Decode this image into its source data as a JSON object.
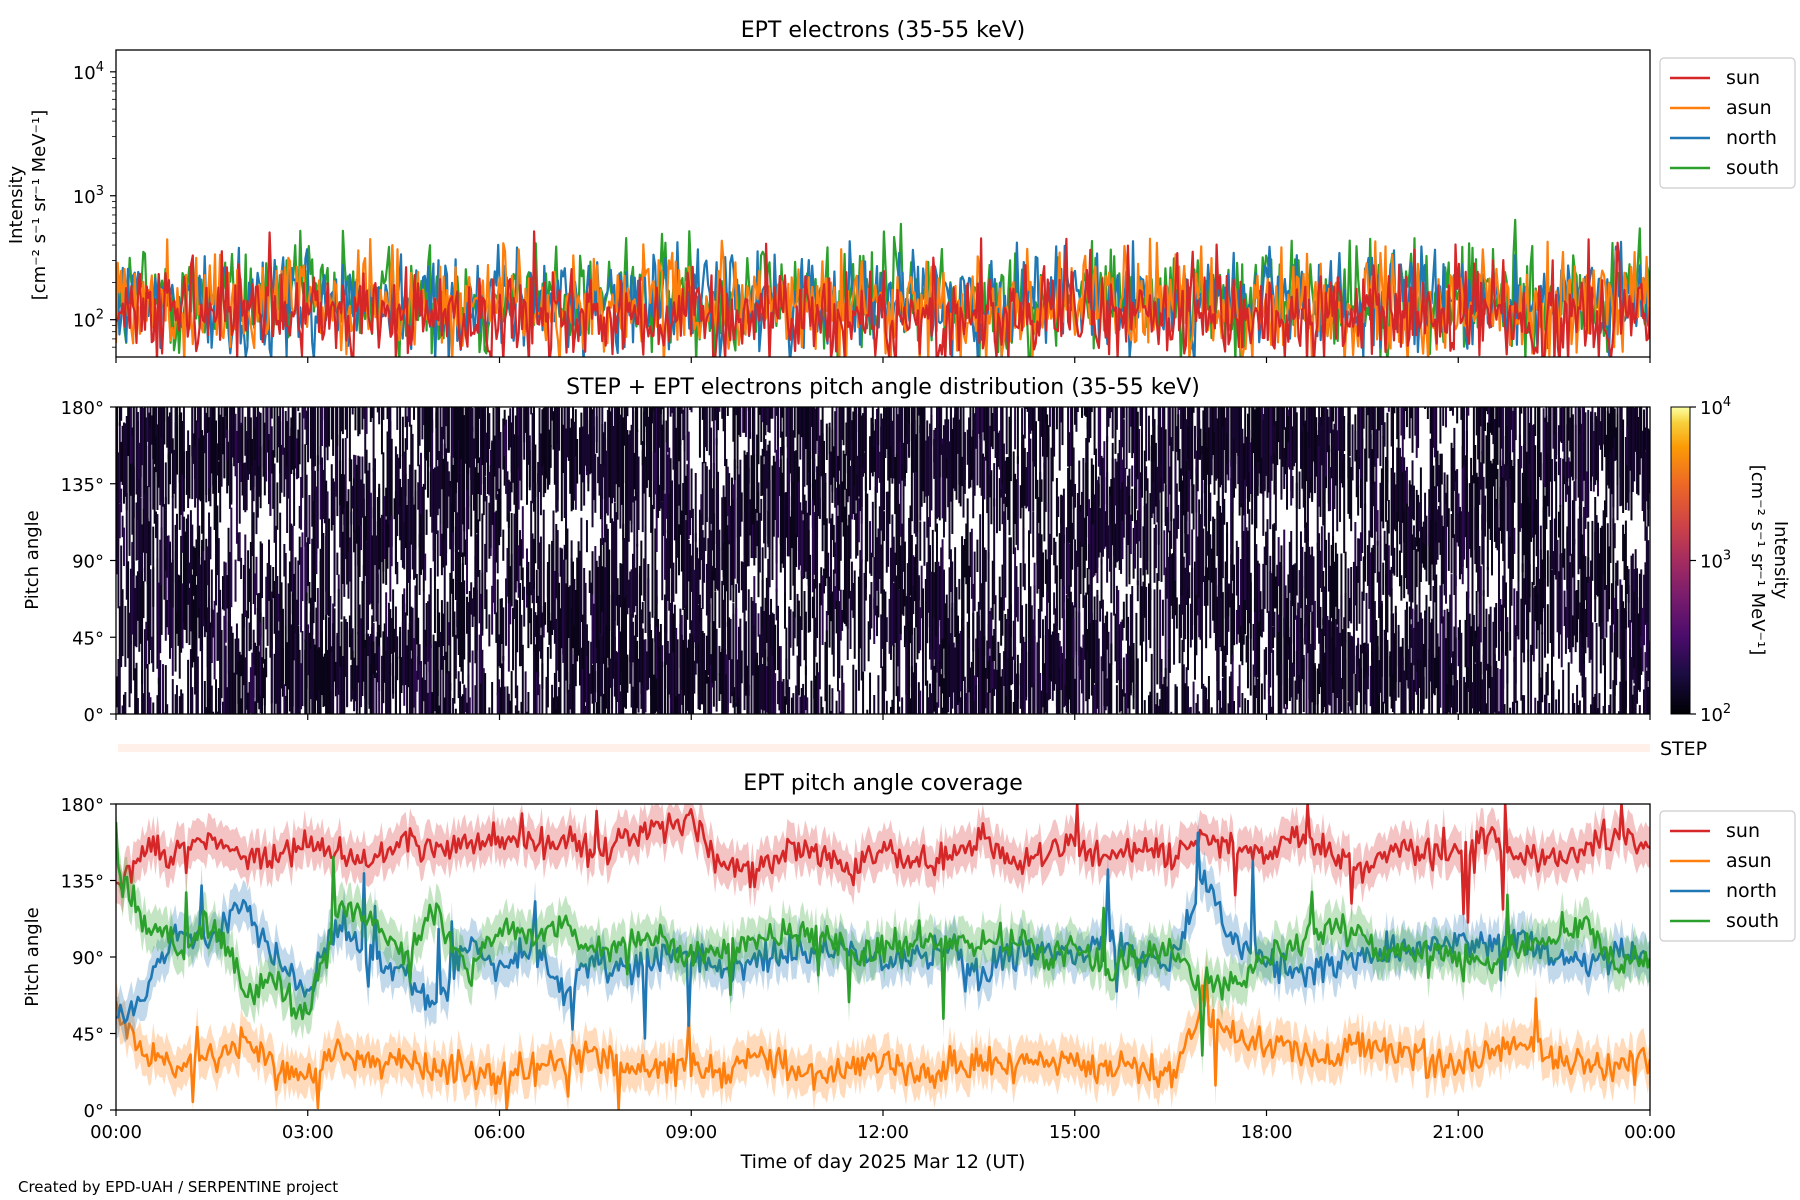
{
  "credit": "Created by EPD-UAH / SERPENTINE project",
  "xlabel": "Time of day 2025 Mar 12 (UT)",
  "x_ticks": [
    "00:00",
    "03:00",
    "06:00",
    "09:00",
    "12:00",
    "15:00",
    "18:00",
    "21:00",
    "00:00"
  ],
  "chart_data": [
    {
      "type": "line",
      "title": "EPT electrons (35-55 keV)",
      "ylabel": "Intensity",
      "yunit": "[cm⁻² s⁻¹ sr⁻¹ MeV⁻¹]",
      "yscale": "log",
      "ylim": [
        50,
        15000
      ],
      "y_ticks": [
        {
          "base": "10",
          "exp": "2",
          "value": 100
        },
        {
          "base": "10",
          "exp": "3",
          "value": 1000
        },
        {
          "base": "10",
          "exp": "4",
          "value": 10000
        }
      ],
      "x_range_hours": [
        0,
        24
      ],
      "legend_position": "outside-right-top",
      "series": [
        {
          "name": "south",
          "color": "#2ca02c",
          "baseline": 150,
          "spread": 0.45,
          "max_peak": 640
        },
        {
          "name": "north",
          "color": "#1f77b4",
          "baseline": 140,
          "spread": 0.4,
          "max_peak": 430
        },
        {
          "name": "asun",
          "color": "#ff7f0e",
          "baseline": 130,
          "spread": 0.4,
          "max_peak": 450
        },
        {
          "name": "sun",
          "color": "#d62728",
          "baseline": 110,
          "spread": 0.38,
          "max_peak": 520
        }
      ],
      "legend": [
        "sun",
        "asun",
        "north",
        "south"
      ]
    },
    {
      "type": "heatmap",
      "title": "STEP + EPT electrons pitch angle distribution (35-55 keV)",
      "ylabel": "Pitch angle",
      "ylim": [
        0,
        180
      ],
      "y_ticks": [
        "0°",
        "45°",
        "90°",
        "135°",
        "180°"
      ],
      "colorbar": {
        "label": "Intensity",
        "unit": "[cm⁻² s⁻¹ sr⁻¹ MeV⁻¹]",
        "scale": "log",
        "range": [
          100,
          10000
        ],
        "colormap": "inferno",
        "ticks": [
          {
            "base": "10",
            "exp": "2",
            "value": 100
          },
          {
            "base": "10",
            "exp": "3",
            "value": 1000
          },
          {
            "base": "10",
            "exp": "4",
            "value": 10000
          }
        ]
      },
      "typical_value": 120,
      "missing_data": "white"
    },
    {
      "type": "bar",
      "label": "STEP",
      "description_values": "STEP coverage strip",
      "color": "#fff0ea"
    },
    {
      "type": "line",
      "title": "EPT pitch angle coverage",
      "ylabel": "Pitch angle",
      "ylim": [
        0,
        180
      ],
      "y_ticks": [
        "0°",
        "45°",
        "90°",
        "135°",
        "180°"
      ],
      "legend_position": "outside-right-top",
      "series": [
        {
          "name": "sun",
          "color": "#d62728",
          "anchors": [
            130,
            155,
            150,
            160,
            150,
            150,
            155,
            150,
            145,
            160,
            150,
            155,
            160,
            155,
            160,
            150,
            160,
            165,
            170,
            145,
            140,
            155,
            150,
            140,
            155,
            145,
            150,
            160,
            145,
            150,
            155,
            150,
            155,
            150,
            160,
            155,
            150,
            165,
            150,
            145,
            155,
            150,
            155,
            160,
            150,
            150,
            155,
            160,
            155
          ]
        },
        {
          "name": "asun",
          "color": "#ff7f0e",
          "anchors": [
            60,
            30,
            25,
            30,
            40,
            25,
            20,
            35,
            30,
            30,
            25,
            25,
            20,
            25,
            30,
            35,
            25,
            25,
            25,
            20,
            30,
            25,
            20,
            25,
            30,
            20,
            25,
            30,
            25,
            30,
            30,
            25,
            25,
            20,
            60,
            45,
            40,
            35,
            30,
            40,
            35,
            30,
            25,
            35,
            40,
            30,
            25,
            30,
            30
          ]
        },
        {
          "name": "north",
          "color": "#1f77b4",
          "anchors": [
            50,
            70,
            110,
            100,
            120,
            90,
            70,
            110,
            90,
            80,
            60,
            100,
            80,
            100,
            70,
            90,
            80,
            90,
            90,
            80,
            90,
            90,
            90,
            95,
            85,
            90,
            95,
            80,
            90,
            95,
            90,
            100,
            90,
            85,
            140,
            100,
            90,
            80,
            85,
            90,
            95,
            95,
            100,
            95,
            100,
            90,
            85,
            95,
            90
          ]
        },
        {
          "name": "south",
          "color": "#2ca02c",
          "anchors": [
            140,
            110,
            95,
            110,
            70,
            75,
            55,
            120,
            110,
            90,
            120,
            80,
            110,
            100,
            110,
            90,
            100,
            100,
            90,
            95,
            100,
            105,
            105,
            90,
            95,
            100,
            100,
            95,
            100,
            90,
            95,
            85,
            90,
            95,
            70,
            75,
            90,
            95,
            110,
            100,
            90,
            95,
            90,
            85,
            95,
            100,
            110,
            85,
            90
          ]
        }
      ],
      "legend": [
        "sun",
        "asun",
        "north",
        "south"
      ]
    }
  ]
}
